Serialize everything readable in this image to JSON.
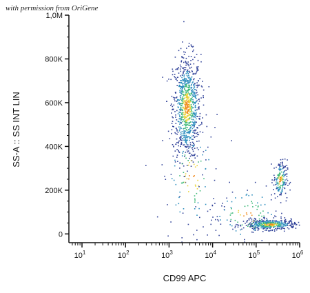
{
  "watermark": "with permission from OriGene",
  "chart_data": {
    "type": "scatter",
    "title": "",
    "xlabel": "CD99 APC",
    "ylabel": "SS-A :: SS INT LIN",
    "x_scale": "log",
    "xlim": [
      5,
      1000000
    ],
    "ylim": [
      -40000,
      1000000
    ],
    "x_ticks": [
      {
        "value": 10,
        "base": "10",
        "exp": "1"
      },
      {
        "value": 100,
        "base": "10",
        "exp": "2"
      },
      {
        "value": 1000,
        "base": "10",
        "exp": "3"
      },
      {
        "value": 10000,
        "base": "10",
        "exp": "4"
      },
      {
        "value": 100000,
        "base": "10",
        "exp": "5"
      },
      {
        "value": 1000000,
        "base": "10",
        "exp": "6"
      }
    ],
    "y_ticks": [
      {
        "value": 0,
        "label": "0"
      },
      {
        "value": 200000,
        "label": "200K"
      },
      {
        "value": 400000,
        "label": "400K"
      },
      {
        "value": 600000,
        "label": "600K"
      },
      {
        "value": 800000,
        "label": "800K"
      },
      {
        "value": 1000000,
        "label": "1,0M"
      }
    ],
    "grid": false,
    "density_colors": [
      "#33449a",
      "#2f8fbf",
      "#3cb878",
      "#e9d33a",
      "#f08a1e",
      "#d72a1e"
    ],
    "populations": [
      {
        "x_center": 2500,
        "y_center": 580000,
        "x_spread_log": 0.16,
        "y_spread": 120000,
        "count": 900
      },
      {
        "x_center": 3200,
        "y_center": 260000,
        "x_spread_log": 0.35,
        "y_spread": 140000,
        "count": 110
      },
      {
        "x_center": 200000,
        "y_center": 45000,
        "x_spread_log": 0.3,
        "y_spread": 12000,
        "count": 420
      },
      {
        "x_center": 350000,
        "y_center": 250000,
        "x_spread_log": 0.08,
        "y_spread": 45000,
        "count": 170
      },
      {
        "x_center": 60000,
        "y_center": 90000,
        "x_spread_log": 0.45,
        "y_spread": 70000,
        "count": 120
      }
    ]
  }
}
